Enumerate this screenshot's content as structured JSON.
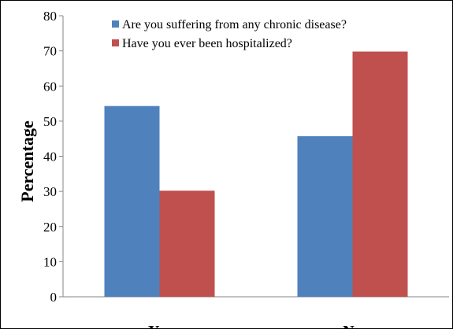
{
  "chart_data": {
    "type": "bar",
    "title": "",
    "xlabel": "",
    "ylabel": "Percentage",
    "categories": [
      "Yes",
      "No"
    ],
    "series": [
      {
        "name": "Are you suffering from any chronic disease?",
        "color": "#4F81BD",
        "values": [
          54.3,
          45.7
        ]
      },
      {
        "name": "Have you ever been hospitalized?",
        "color": "#C0504D",
        "values": [
          30.2,
          69.8
        ]
      }
    ],
    "ylim": [
      0,
      80
    ],
    "yticks": [
      "0",
      "10",
      "20",
      "30",
      "40",
      "50",
      "60",
      "70",
      "80"
    ],
    "grid": false,
    "legend_position": "top-right"
  }
}
